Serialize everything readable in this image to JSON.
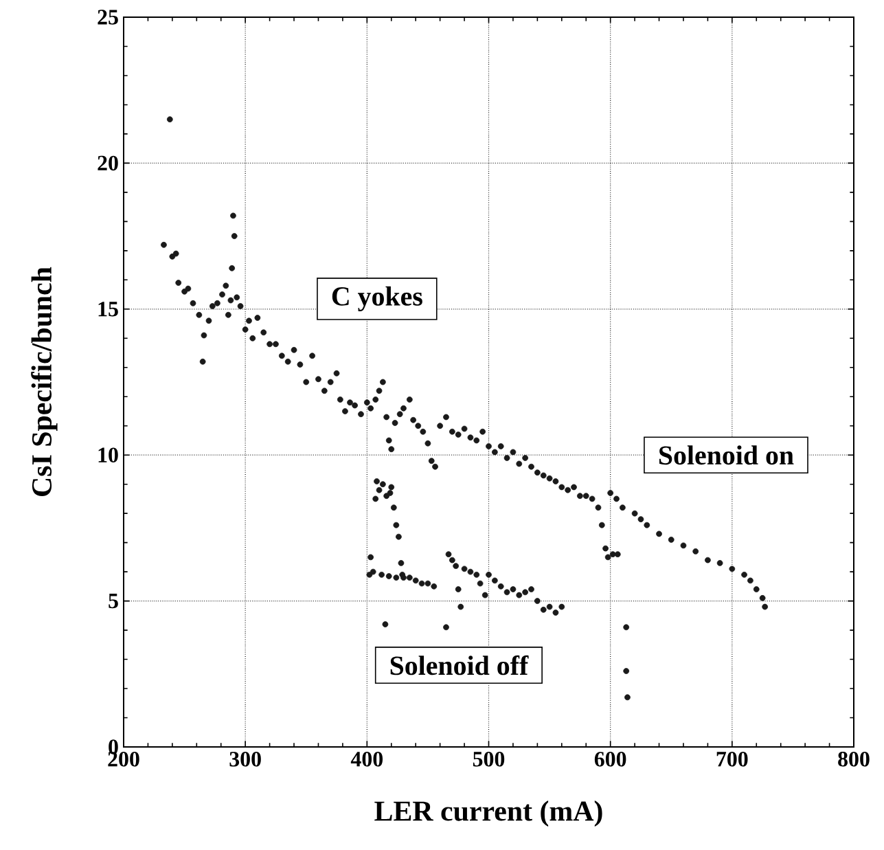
{
  "chart_data": {
    "type": "scatter",
    "xlabel": "LER current (mA)",
    "ylabel": "CsI Specific/bunch",
    "xlim": [
      200,
      800
    ],
    "xticks": [
      200,
      300,
      400,
      500,
      600,
      700,
      800
    ],
    "ylim": [
      0,
      25
    ],
    "yticks": [
      0,
      5,
      10,
      15,
      20,
      25
    ],
    "grid": true,
    "marker": "circle",
    "series": [
      {
        "color": "#1a1a1a",
        "x": [
          233,
          238,
          240,
          243,
          245,
          250,
          253,
          257,
          262,
          265,
          266,
          270,
          273,
          277,
          281,
          284,
          286,
          288,
          289,
          290,
          291,
          293,
          296,
          300,
          303,
          306,
          310,
          315,
          320,
          325,
          330,
          335,
          340,
          345,
          350,
          355,
          360,
          365,
          370,
          375,
          378,
          382,
          386,
          390,
          395,
          400,
          403,
          407,
          410,
          413,
          416,
          418,
          420,
          423,
          427,
          430,
          435,
          438,
          442,
          446,
          450,
          453,
          456,
          460,
          465,
          470,
          475,
          480,
          485,
          490,
          495,
          500,
          505,
          510,
          515,
          520,
          525,
          530,
          535,
          540,
          545,
          550,
          555,
          560,
          565,
          570,
          575,
          580,
          585,
          590,
          593,
          596,
          598,
          602,
          606,
          600,
          605,
          610,
          613,
          613,
          614,
          620,
          625,
          630,
          640,
          650,
          660,
          670,
          680,
          690,
          700,
          710,
          715,
          720,
          725,
          727,
          402,
          403,
          405,
          407,
          408,
          410,
          413,
          416,
          419,
          420,
          422,
          424,
          426,
          428,
          429,
          430,
          435,
          440,
          445,
          450,
          455,
          415,
          465,
          467,
          470,
          473,
          475,
          477,
          480,
          485,
          490,
          493,
          497,
          500,
          505,
          510,
          515,
          520,
          525,
          530,
          535,
          540,
          545,
          550,
          555,
          560,
          412,
          418,
          424
        ],
        "values": [
          17.2,
          21.5,
          16.8,
          16.9,
          15.9,
          15.6,
          15.7,
          15.2,
          14.8,
          13.2,
          14.1,
          14.6,
          15.1,
          15.2,
          15.5,
          15.8,
          14.8,
          15.3,
          16.4,
          18.2,
          17.5,
          15.4,
          15.1,
          14.3,
          14.6,
          14.0,
          14.7,
          14.2,
          13.8,
          13.8,
          13.4,
          13.2,
          13.6,
          13.1,
          12.5,
          13.4,
          12.6,
          12.2,
          12.5,
          12.8,
          11.9,
          11.5,
          11.8,
          11.7,
          11.4,
          11.8,
          11.6,
          11.9,
          12.2,
          12.5,
          11.3,
          10.5,
          10.2,
          11.1,
          11.4,
          11.6,
          11.9,
          11.2,
          11.0,
          10.8,
          10.4,
          9.8,
          9.6,
          11.0,
          11.3,
          10.8,
          10.7,
          10.9,
          10.6,
          10.5,
          10.8,
          10.3,
          10.1,
          10.3,
          9.9,
          10.1,
          9.7,
          9.9,
          9.6,
          9.4,
          9.3,
          9.2,
          9.1,
          8.9,
          8.8,
          8.9,
          8.6,
          8.6,
          8.5,
          8.2,
          7.6,
          6.8,
          6.5,
          6.6,
          6.6,
          8.7,
          8.5,
          8.2,
          4.1,
          2.6,
          1.7,
          8.0,
          7.8,
          7.6,
          7.3,
          7.1,
          6.9,
          6.7,
          6.4,
          6.3,
          6.1,
          5.9,
          5.7,
          5.4,
          5.1,
          4.8,
          5.9,
          6.5,
          6.0,
          8.5,
          9.1,
          8.8,
          9.0,
          8.6,
          8.7,
          8.9,
          8.2,
          7.6,
          7.2,
          6.3,
          5.9,
          5.8,
          5.8,
          5.7,
          5.6,
          5.6,
          5.5,
          4.2,
          4.1,
          6.6,
          6.4,
          6.2,
          5.4,
          4.8,
          6.1,
          6.0,
          5.9,
          5.6,
          5.2,
          5.9,
          5.7,
          5.5,
          5.3,
          5.4,
          5.2,
          5.3,
          5.4,
          5.0,
          4.7,
          4.8,
          4.6,
          4.8,
          5.9,
          5.85,
          5.8
        ]
      }
    ],
    "annotations": [
      "C yokes",
      "Solenoid on",
      "Solenoid off"
    ]
  }
}
